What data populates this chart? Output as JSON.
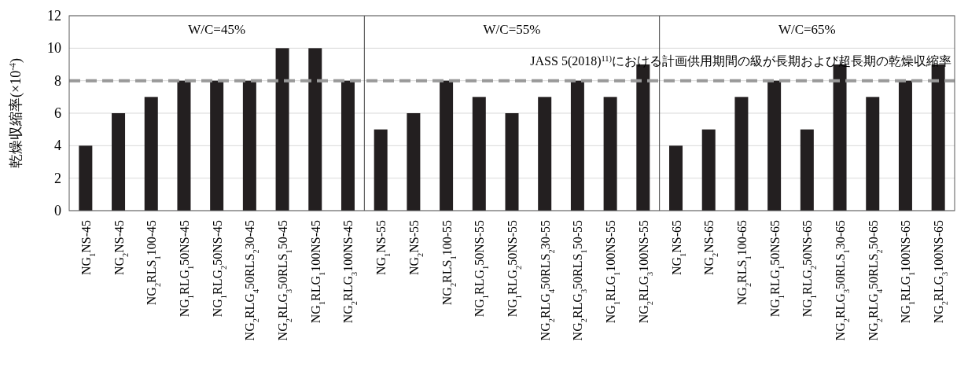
{
  "chart_data": {
    "type": "bar",
    "ylabel": "乾燥収縮率(×10$^{-4}$)",
    "categories": [
      "NG$_{1}$NS-45",
      "NG$_{2}$NS-45",
      "NG$_{2}$RLS$_{1}$100-45",
      "NG$_{1}$RLG$_{1}$50NS-45",
      "NG$_{1}$RLG$_{2}$50NS-45",
      "NG$_{2}$RLG$_{4}$50RLS$_{2}$30-45",
      "NG$_{2}$RLG$_{3}$50RLS$_{1}$50-45",
      "NG$_{1}$RLG$_{1}$100NS-45",
      "NG$_{2}$RLG$_{3}$100NS-45",
      "NG$_{1}$NS-55",
      "NG$_{2}$NS-55",
      "NG$_{2}$RLS$_{1}$100-55",
      "NG$_{1}$RLG$_{1}$50NS-55",
      "NG$_{1}$RLG$_{2}$50NS-55",
      "NG$_{2}$RLG$_{4}$50RLS$_{2}$30-55",
      "NG$_{2}$RLG$_{3}$50RLS$_{1}$50-55",
      "NG$_{1}$RLG$_{1}$100NS-55",
      "NG$_{2}$RLG$_{3}$100NS-55",
      "NG$_{1}$NS-65",
      "NG$_{2}$NS-65",
      "NG$_{2}$RLS$_{1}$100-65",
      "NG$_{1}$RLG$_{1}$50NS-65",
      "NG$_{1}$RLG$_{2}$50NS-65",
      "NG$_{2}$RLG$_{3}$50RLS$_{1}$30-65",
      "NG$_{2}$RLG$_{4}$50RLS$_{2}$50-65",
      "NG$_{1}$RLG$_{1}$100NS-65",
      "NG$_{2}$RLG$_{3}$100NS-65"
    ],
    "values": [
      4,
      6,
      7,
      8,
      8,
      8,
      10,
      10,
      8,
      5,
      6,
      8,
      7,
      6,
      7,
      8,
      7,
      9,
      4,
      5,
      7,
      8,
      5,
      9,
      7,
      8,
      9
    ],
    "color": "#231f20",
    "ylim": [
      0,
      12
    ],
    "yticks": [
      0,
      2,
      4,
      6,
      8,
      10,
      12
    ],
    "grid": "y",
    "ref_lines": [
      {
        "axis": "y",
        "value": 8,
        "label": "JASS 5(2018)$^{11)}$における計画供用期間の級が長期および超長期の乾燥収縮率",
        "color": "#999999",
        "line_style": "dashed"
      }
    ],
    "annotations": [
      "W/C=45%",
      "W/C=55%",
      "W/C=65%"
    ]
  }
}
